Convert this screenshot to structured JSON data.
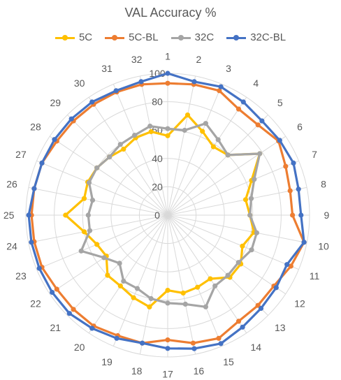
{
  "chart_data": {
    "type": "radar",
    "title": "VAL Accuracy %",
    "categories": [
      "1",
      "2",
      "3",
      "4",
      "5",
      "6",
      "7",
      "8",
      "9",
      "10",
      "11",
      "12",
      "13",
      "14",
      "15",
      "16",
      "17",
      "18",
      "19",
      "20",
      "21",
      "22",
      "23",
      "24",
      "25",
      "26",
      "27",
      "28",
      "29",
      "30",
      "31",
      "32"
    ],
    "radial_ticks": [
      "0",
      "20",
      "40",
      "60",
      "80",
      "100"
    ],
    "rlim": [
      0,
      100
    ],
    "grid": true,
    "legend_position": "top",
    "series": [
      {
        "name": "5C",
        "color": "#FFC000",
        "values": [
          56,
          72,
          64,
          58,
          60,
          78,
          64,
          56,
          58,
          62,
          57,
          62,
          62,
          54,
          55,
          56,
          53,
          66,
          63,
          60,
          60,
          52,
          54,
          60,
          72,
          60,
          61,
          60,
          58,
          56,
          59,
          60
        ]
      },
      {
        "name": "5C-BL",
        "color": "#ED7D31",
        "values": [
          93,
          94,
          95,
          90,
          90,
          94,
          90,
          88,
          88,
          98,
          94,
          90,
          90,
          90,
          94,
          92,
          88,
          92,
          92,
          94,
          94,
          94,
          96,
          96,
          96,
          96,
          96,
          94,
          94,
          94,
          94,
          94
        ]
      },
      {
        "name": "32C",
        "color": "#A5A5A5",
        "values": [
          61,
          61,
          70,
          64,
          60,
          78,
          66,
          60,
          58,
          64,
          64,
          60,
          60,
          60,
          70,
          64,
          62,
          60,
          56,
          56,
          48,
          54,
          66,
          56,
          56,
          54,
          60,
          60,
          58,
          60,
          61,
          64
        ]
      },
      {
        "name": "32C-BL",
        "color": "#4472C4",
        "values": [
          100,
          96,
          98,
          96,
          94,
          95,
          96,
          94,
          94,
          98,
          91,
          92,
          93,
          95,
          98,
          96,
          94,
          92,
          94,
          96,
          98,
          98,
          98,
          98,
          98,
          96,
          96,
          96,
          96,
          96,
          95,
          96
        ]
      }
    ]
  }
}
